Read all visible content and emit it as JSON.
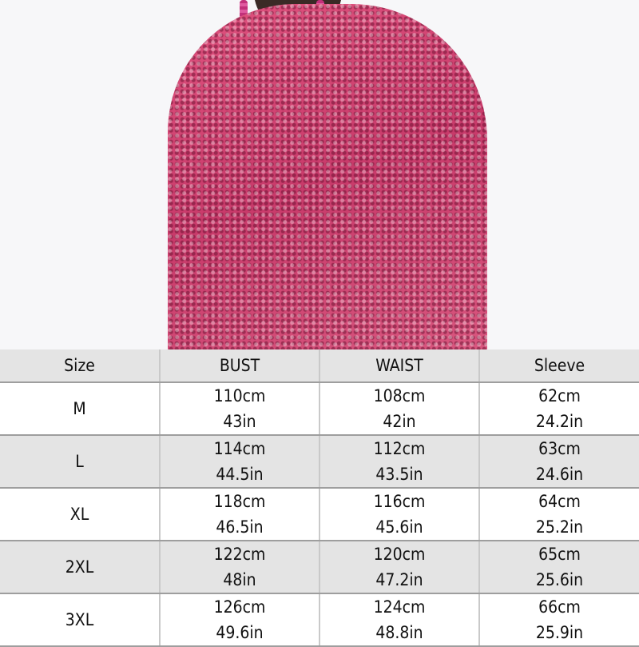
{
  "product_image": {
    "subject": "pink sequin top",
    "accent": "#d14a76"
  },
  "size_table": {
    "headers": [
      "Size",
      "BUST",
      "WAIST",
      "Sleeve"
    ],
    "rows": [
      {
        "size": "M",
        "bust_cm": "110cm",
        "bust_in": "43in",
        "waist_cm": "108cm",
        "waist_in": "42in",
        "sleeve_cm": "62cm",
        "sleeve_in": "24.2in"
      },
      {
        "size": "L",
        "bust_cm": "114cm",
        "bust_in": "44.5in",
        "waist_cm": "112cm",
        "waist_in": "43.5in",
        "sleeve_cm": "63cm",
        "sleeve_in": "24.6in"
      },
      {
        "size": "XL",
        "bust_cm": "118cm",
        "bust_in": "46.5in",
        "waist_cm": "116cm",
        "waist_in": "45.6in",
        "sleeve_cm": "64cm",
        "sleeve_in": "25.2in"
      },
      {
        "size": "2XL",
        "bust_cm": "122cm",
        "bust_in": "48in",
        "waist_cm": "120cm",
        "waist_in": "47.2in",
        "sleeve_cm": "65cm",
        "sleeve_in": "25.6in"
      },
      {
        "size": "3XL",
        "bust_cm": "126cm",
        "bust_in": "49.6in",
        "waist_cm": "124cm",
        "waist_in": "48.8in",
        "sleeve_cm": "66cm",
        "sleeve_in": "25.9in"
      }
    ]
  }
}
